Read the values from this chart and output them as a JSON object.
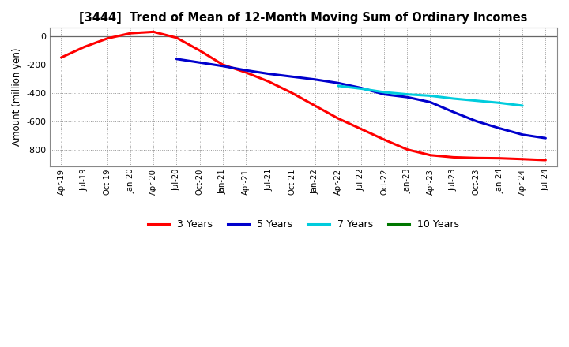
{
  "title": "[3444]  Trend of Mean of 12-Month Moving Sum of Ordinary Incomes",
  "ylabel": "Amount (million yen)",
  "background_color": "#ffffff",
  "grid_color": "#999999",
  "ylim": [
    -920,
    60
  ],
  "yticks": [
    0,
    -200,
    -400,
    -600,
    -800
  ],
  "series": {
    "3 Years": {
      "color": "#ff0000",
      "points": [
        [
          "Apr-19",
          -150
        ],
        [
          "Jul-19",
          -75
        ],
        [
          "Oct-19",
          -15
        ],
        [
          "Jan-20",
          22
        ],
        [
          "Apr-20",
          32
        ],
        [
          "Jul-20",
          -10
        ],
        [
          "Oct-20",
          -100
        ],
        [
          "Jan-21",
          -200
        ],
        [
          "Apr-21",
          -255
        ],
        [
          "Jul-21",
          -320
        ],
        [
          "Oct-21",
          -400
        ],
        [
          "Jan-22",
          -490
        ],
        [
          "Apr-22",
          -580
        ],
        [
          "Jul-22",
          -655
        ],
        [
          "Oct-22",
          -730
        ],
        [
          "Jan-23",
          -800
        ],
        [
          "Apr-23",
          -840
        ],
        [
          "Jul-23",
          -855
        ],
        [
          "Oct-23",
          -860
        ],
        [
          "Jan-24",
          -862
        ],
        [
          "Apr-24",
          -868
        ],
        [
          "Jul-24",
          -875
        ]
      ]
    },
    "5 Years": {
      "color": "#0000cc",
      "points": [
        [
          "Jul-20",
          -160
        ],
        [
          "Oct-20",
          -185
        ],
        [
          "Jan-21",
          -210
        ],
        [
          "Apr-21",
          -240
        ],
        [
          "Jul-21",
          -265
        ],
        [
          "Oct-21",
          -285
        ],
        [
          "Jan-22",
          -305
        ],
        [
          "Apr-22",
          -330
        ],
        [
          "Jul-22",
          -365
        ],
        [
          "Oct-22",
          -410
        ],
        [
          "Jan-23",
          -430
        ],
        [
          "Apr-23",
          -465
        ],
        [
          "Jul-23",
          -535
        ],
        [
          "Oct-23",
          -600
        ],
        [
          "Jan-24",
          -650
        ],
        [
          "Apr-24",
          -695
        ],
        [
          "Jul-24",
          -720
        ]
      ]
    },
    "7 Years": {
      "color": "#00ccdd",
      "points": [
        [
          "Apr-22",
          -350
        ],
        [
          "Jul-22",
          -370
        ],
        [
          "Oct-22",
          -395
        ],
        [
          "Jan-23",
          -410
        ],
        [
          "Apr-23",
          -420
        ],
        [
          "Jul-23",
          -440
        ],
        [
          "Oct-23",
          -455
        ],
        [
          "Jan-24",
          -470
        ],
        [
          "Apr-24",
          -490
        ]
      ]
    },
    "10 Years": {
      "color": "#007700",
      "points": []
    }
  },
  "xtick_labels": [
    "Apr-19",
    "Jul-19",
    "Oct-19",
    "Jan-20",
    "Apr-20",
    "Jul-20",
    "Oct-20",
    "Jan-21",
    "Apr-21",
    "Jul-21",
    "Oct-21",
    "Jan-22",
    "Apr-22",
    "Jul-22",
    "Oct-22",
    "Jan-23",
    "Apr-23",
    "Jul-23",
    "Oct-23",
    "Jan-24",
    "Apr-24",
    "Jul-24"
  ]
}
